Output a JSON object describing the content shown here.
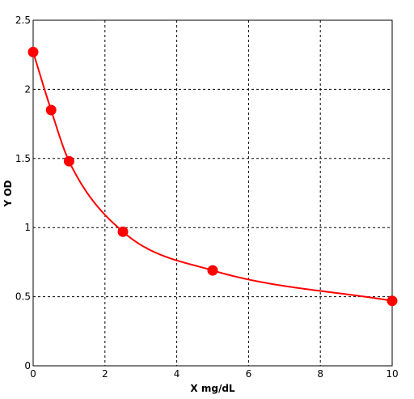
{
  "chart_data": {
    "type": "scatter",
    "title": "",
    "xlabel": "X mg/dL",
    "ylabel": "Y OD",
    "xlim": [
      0,
      10
    ],
    "ylim": [
      0,
      2.5
    ],
    "x_ticks": [
      0,
      2,
      4,
      6,
      8,
      10
    ],
    "y_ticks": [
      0,
      0.5,
      1,
      1.5,
      2,
      2.5
    ],
    "x_tick_labels": [
      "0",
      "2",
      "4",
      "6",
      "8",
      "10"
    ],
    "y_tick_labels": [
      "0",
      "0.5",
      "1",
      "1.5",
      "2",
      "2.5"
    ],
    "grid": true,
    "grid_style": "dashed",
    "series": [
      {
        "points": [
          {
            "x": 0,
            "y": 2.27
          },
          {
            "x": 0.5,
            "y": 1.85
          },
          {
            "x": 1,
            "y": 1.48
          },
          {
            "x": 2.5,
            "y": 0.97
          },
          {
            "x": 5,
            "y": 0.69
          },
          {
            "x": 10,
            "y": 0.47
          }
        ],
        "color": "#ff0000",
        "marker": "filled-circle",
        "fit_curve": true
      }
    ],
    "colors": {
      "series": "#ff0000",
      "axes": "#000000",
      "grid": "#000000",
      "background": "#ffffff"
    }
  }
}
